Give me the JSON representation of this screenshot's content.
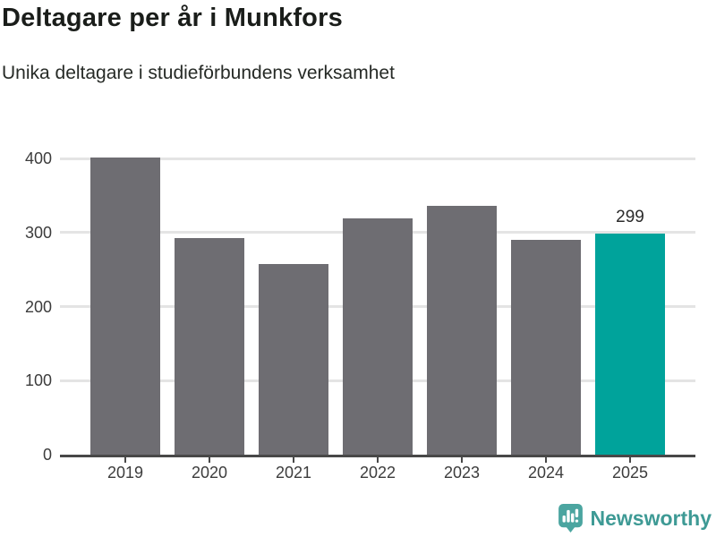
{
  "header": {
    "title": "Deltagare per år i Munkfors",
    "subtitle": "Unika deltagare i studieförbundens verksamhet"
  },
  "chart_data": {
    "type": "bar",
    "title": "Deltagare per år i Munkfors",
    "subtitle": "Unika deltagare i studieförbundens verksamhet",
    "categories": [
      "2019",
      "2020",
      "2021",
      "2022",
      "2023",
      "2024",
      "2025"
    ],
    "values": [
      401,
      293,
      257,
      319,
      336,
      290,
      299
    ],
    "value_labels": {
      "6": "299"
    },
    "highlight_index": 6,
    "xlabel": "",
    "ylabel": "",
    "yticks": [
      0,
      100,
      200,
      300,
      400
    ],
    "ylim": [
      0,
      433
    ],
    "grid": "horizontal",
    "legend": "none",
    "colors": {
      "bar": "#6e6d72",
      "highlight": "#00a39b",
      "gridline": "#e4e4e4",
      "axis": "#484848",
      "tick_text": "#3c3c3c",
      "value_label_text": "#2b2b2b"
    }
  },
  "footer": {
    "brand": "Newsworthy",
    "brand_color": "#3e9a95",
    "icon": "newsworthy-chart-bubble-icon",
    "icon_color": "#4ba5a0"
  }
}
